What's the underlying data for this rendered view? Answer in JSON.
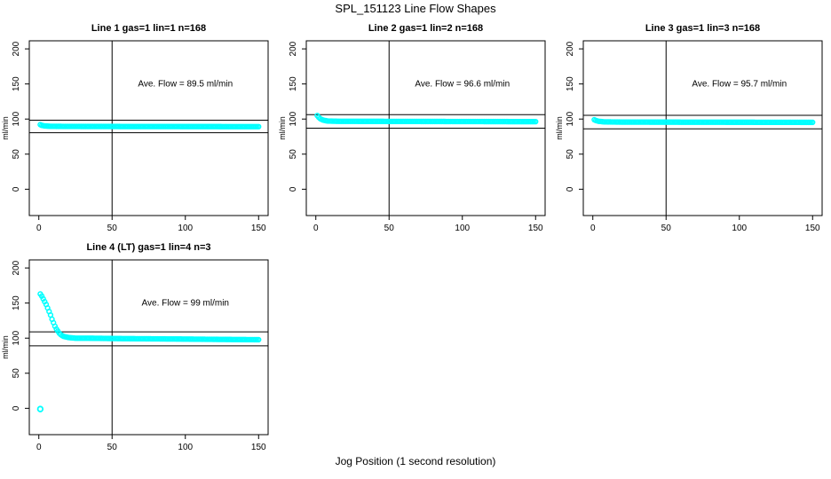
{
  "figure": {
    "title": "SPL_151123  Line Flow Shapes",
    "xlabel": "Jog Position (1 second resolution)",
    "point_color": "#00ffff",
    "axis_color": "#000000",
    "background": "#ffffff"
  },
  "chart_data": [
    {
      "type": "scatter",
      "title": "Line 1 gas=1 lin=1 n=168",
      "annotation": "Ave. Flow =  89.5  ml/min",
      "ave_flow": 89.5,
      "ylabel": "ml/min",
      "xlim": [
        -6.5,
        156.5
      ],
      "ylim": [
        -37.5,
        211.5
      ],
      "xticks": [
        0,
        50,
        100,
        150
      ],
      "yticks": [
        0,
        50,
        100,
        150,
        200
      ],
      "vline_x": 50,
      "hlines": [
        98.45,
        80.55
      ],
      "annotation_pos": [
        100,
        150
      ],
      "x_start": 1,
      "x_end": 150,
      "keypoints": [
        [
          1,
          92
        ],
        [
          2,
          91
        ],
        [
          4,
          90.2
        ],
        [
          8,
          89.7
        ],
        [
          20,
          89.5
        ],
        [
          150,
          89.2
        ]
      ],
      "extra_points": []
    },
    {
      "type": "scatter",
      "title": "Line 2 gas=1 lin=2 n=168",
      "annotation": "Ave. Flow =  96.6  ml/min",
      "ave_flow": 96.6,
      "ylabel": "ml/min",
      "xlim": [
        -6.5,
        156.5
      ],
      "ylim": [
        -37.5,
        211.5
      ],
      "xticks": [
        0,
        50,
        100,
        150
      ],
      "yticks": [
        0,
        50,
        100,
        150,
        200
      ],
      "vline_x": 50,
      "hlines": [
        106.26,
        86.94
      ],
      "annotation_pos": [
        100,
        150
      ],
      "x_start": 1,
      "x_end": 150,
      "keypoints": [
        [
          1,
          105
        ],
        [
          2,
          102.5
        ],
        [
          3,
          100.5
        ],
        [
          5,
          98.5
        ],
        [
          8,
          97.2
        ],
        [
          15,
          96.8
        ],
        [
          150,
          96.3
        ]
      ],
      "extra_points": []
    },
    {
      "type": "scatter",
      "title": "Line 3 gas=1 lin=3 n=168",
      "annotation": "Ave. Flow =  95.7  ml/min",
      "ave_flow": 95.7,
      "ylabel": "ml/min",
      "xlim": [
        -6.5,
        156.5
      ],
      "ylim": [
        -37.5,
        211.5
      ],
      "xticks": [
        0,
        50,
        100,
        150
      ],
      "yticks": [
        0,
        50,
        100,
        150,
        200
      ],
      "vline_x": 50,
      "hlines": [
        105.27,
        86.13
      ],
      "annotation_pos": [
        100,
        150
      ],
      "x_start": 1,
      "x_end": 150,
      "keypoints": [
        [
          1,
          99
        ],
        [
          2,
          98
        ],
        [
          4,
          96.8
        ],
        [
          8,
          96
        ],
        [
          20,
          95.7
        ],
        [
          150,
          95.3
        ]
      ],
      "extra_points": []
    },
    {
      "type": "scatter",
      "title": "Line 4 (LT) gas=1 lin=4 n=3",
      "annotation": "Ave. Flow =  99  ml/min",
      "ave_flow": 99,
      "ylabel": "ml/min",
      "xlim": [
        -6.5,
        156.5
      ],
      "ylim": [
        -37.5,
        211.5
      ],
      "xticks": [
        0,
        50,
        100,
        150
      ],
      "yticks": [
        0,
        50,
        100,
        150,
        200
      ],
      "vline_x": 50,
      "hlines": [
        108.9,
        89.1
      ],
      "annotation_pos": [
        100,
        150
      ],
      "x_start": 1,
      "x_end": 150,
      "keypoints": [
        [
          1,
          163
        ],
        [
          2,
          160
        ],
        [
          3,
          156
        ],
        [
          4,
          152
        ],
        [
          5,
          148
        ],
        [
          6,
          143
        ],
        [
          7,
          138
        ],
        [
          8,
          133
        ],
        [
          9,
          127
        ],
        [
          10,
          122
        ],
        [
          11,
          117
        ],
        [
          12,
          113
        ],
        [
          13,
          110
        ],
        [
          14,
          107
        ],
        [
          15,
          105
        ],
        [
          16,
          103.5
        ],
        [
          17,
          102.5
        ],
        [
          18,
          102
        ],
        [
          20,
          101
        ],
        [
          22,
          100.5
        ],
        [
          25,
          100
        ],
        [
          30,
          100
        ],
        [
          40,
          99.8
        ],
        [
          50,
          99.5
        ],
        [
          60,
          99.3
        ],
        [
          80,
          99
        ],
        [
          100,
          98.7
        ],
        [
          120,
          98.3
        ],
        [
          150,
          97.8
        ]
      ],
      "extra_points": [
        [
          1,
          -1
        ]
      ]
    }
  ]
}
